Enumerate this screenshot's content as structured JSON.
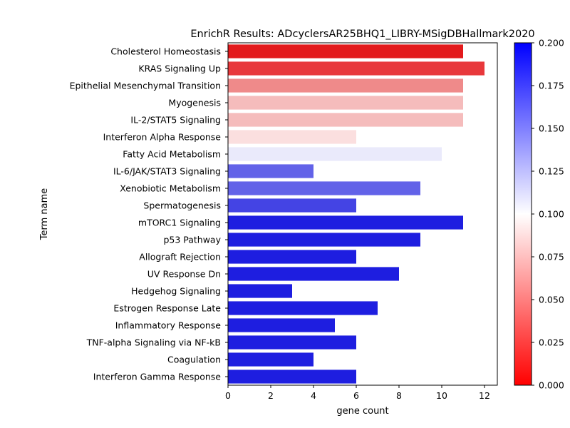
{
  "chart_data": {
    "type": "bar",
    "orientation": "horizontal",
    "title": "EnrichR Results: ADcyclersAR25BHQ1_LIBRY-MSigDBHallmark2020",
    "xlabel": "gene count",
    "ylabel": "Term name",
    "xlim": [
      0,
      12.6
    ],
    "xticks": [
      "0",
      "2",
      "4",
      "6",
      "8",
      "10",
      "12"
    ],
    "grid": false,
    "categories": [
      "Cholesterol Homeostasis",
      "KRAS Signaling Up",
      "Epithelial Mesenchymal Transition",
      "Myogenesis",
      "IL-2/STAT5 Signaling",
      "Interferon Alpha Response",
      "Fatty Acid Metabolism",
      "IL-6/JAK/STAT3 Signaling",
      "Xenobiotic Metabolism",
      "Spermatogenesis",
      "mTORC1 Signaling",
      "p53 Pathway",
      "Allograft Rejection",
      "UV Response Dn",
      "Hedgehog Signaling",
      "Estrogen Response Late",
      "Inflammatory Response",
      "TNF-alpha Signaling via NF-kB",
      "Coagulation",
      "Interferon Gamma Response"
    ],
    "values": [
      11,
      12,
      11,
      11,
      11,
      6,
      10,
      4,
      9,
      6,
      11,
      9,
      6,
      8,
      3,
      7,
      5,
      6,
      4,
      6
    ],
    "colors": [
      "#e31a1c",
      "#e8383b",
      "#ef8a8a",
      "#f5bcbc",
      "#f5bcbc",
      "#fbdfdf",
      "#eaeafb",
      "#6262e8",
      "#6262e8",
      "#4444e4",
      "#1e1ee0",
      "#1e1ee0",
      "#1e1ee0",
      "#1e1ee0",
      "#1e1ee0",
      "#1e1ee0",
      "#1e1ee0",
      "#1e1ee0",
      "#1e1ee0",
      "#1e1ee0"
    ],
    "colorbar": {
      "min": 0.0,
      "max": 0.2,
      "ticks": [
        "0.000",
        "0.025",
        "0.050",
        "0.075",
        "0.100",
        "0.125",
        "0.150",
        "0.175",
        "0.200"
      ],
      "colors": [
        "#ff0000",
        "#ffffff",
        "#0000ff"
      ]
    }
  }
}
